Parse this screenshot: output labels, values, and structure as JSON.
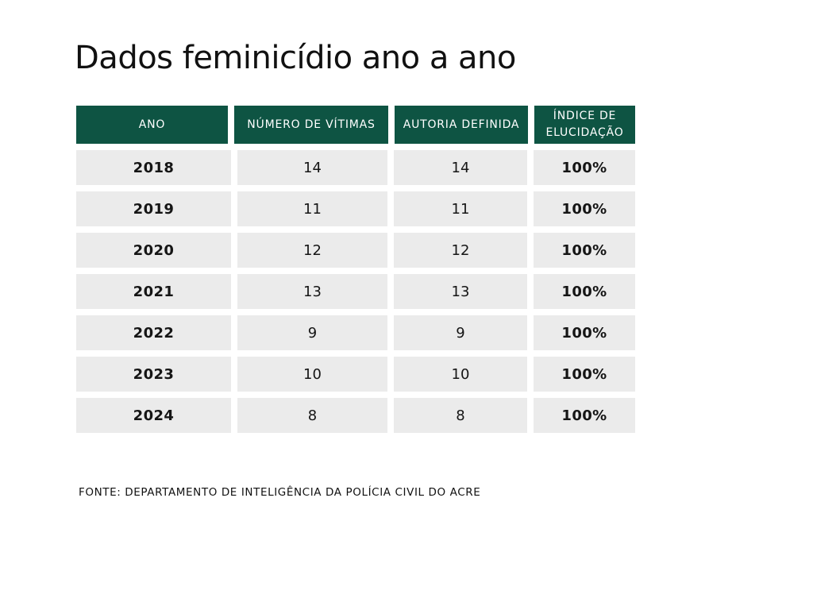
{
  "title": "Dados feminicídio ano a ano",
  "table": {
    "headers": [
      "ANO",
      "NÚMERO DE VÍTIMAS",
      "AUTORIA DEFINIDA",
      "ÍNDICE DE ELUCIDAÇÃO"
    ],
    "header_last_lines": [
      "ÍNDICE DE",
      "ELUCIDAÇÃO"
    ],
    "rows": [
      [
        "2018",
        "14",
        "14",
        "100%"
      ],
      [
        "2019",
        "11",
        "11",
        "100%"
      ],
      [
        "2020",
        "12",
        "12",
        "100%"
      ],
      [
        "2021",
        "13",
        "13",
        "100%"
      ],
      [
        "2022",
        "9",
        "9",
        "100%"
      ],
      [
        "2023",
        "10",
        "10",
        "100%"
      ],
      [
        "2024",
        "8",
        "8",
        "100%"
      ]
    ]
  },
  "source": "FONTE: DEPARTAMENTO DE INTELIGÊNCIA DA POLÍCIA CIVIL DO ACRE",
  "colors": {
    "header_bg": "#0e5443",
    "cell_bg": "#ebebeb"
  }
}
